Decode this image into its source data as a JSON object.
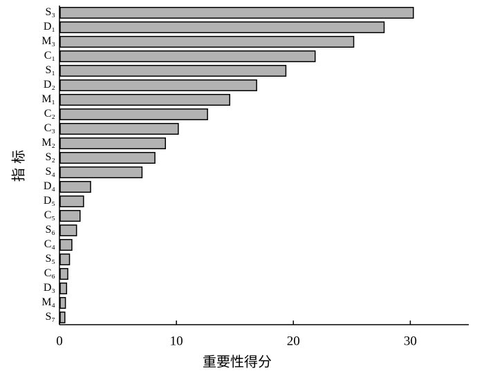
{
  "chart_data": {
    "type": "hbar",
    "x_label": "重要性得分",
    "y_label": "指 标",
    "categories": [
      "S₃",
      "D₁",
      "M₃",
      "C₁",
      "S₁",
      "D₂",
      "M₁",
      "C₂",
      "C₃",
      "M₂",
      "S₂",
      "S₄",
      "D₄",
      "D₅",
      "C₅",
      "S₆",
      "C₄",
      "S₅",
      "C₆",
      "D₃",
      "M₄",
      "S₇"
    ],
    "values": [
      30.2,
      27.7,
      25.1,
      21.8,
      19.3,
      16.8,
      14.5,
      12.6,
      10.1,
      9.0,
      8.1,
      7.0,
      2.6,
      2.0,
      1.7,
      1.4,
      1.0,
      0.8,
      0.65,
      0.55,
      0.45,
      0.4
    ],
    "color": "#b3b3b3",
    "xlim": [
      0,
      35
    ],
    "xticks": [
      0,
      10,
      20,
      30
    ]
  }
}
